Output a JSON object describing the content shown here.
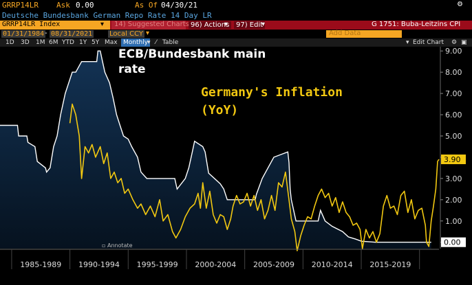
{
  "header": {
    "ticker": "GRRP14LR",
    "ask_label": "Ask",
    "ask_value": "0.00",
    "as_of_label": "As Of",
    "as_of_value": "04/30/21",
    "description": "Deutsche Bundesbank German Repo Rate 14 Day LR"
  },
  "command_bar": {
    "security": "GRRP14LR Index",
    "suggested": "14) Suggested Charts",
    "actions": "96) Actions",
    "edit": "97) Edit",
    "right_title": "G 1751: Buba-Leitzins CPI"
  },
  "range_bar": {
    "start_date": "01/31/1984",
    "end_date": "08/31/2021",
    "currency": "Local CCY",
    "add_data": "Add Data",
    "edit_chart": "Edit Chart"
  },
  "toolbar": {
    "periods": [
      "1D",
      "3D",
      "1M",
      "6M",
      "YTD",
      "1Y",
      "5Y",
      "Max"
    ],
    "frequency": "Monthly",
    "table": "Table"
  },
  "annotate": "Annotate",
  "colors": {
    "background": "#000000",
    "area_fill": "#0d2440",
    "area_line": "#ffffff",
    "cpi_line": "#f2c811",
    "header_bar": "#9b0b1a",
    "amber": "#f5a623"
  },
  "chart_data": {
    "type": "line",
    "xlabel": "",
    "ylabel": "",
    "x_range": [
      1984.0,
      2021.67
    ],
    "ylim": [
      -0.3,
      9.2
    ],
    "y_ticks": [
      "0.00",
      "1.00",
      "2.00",
      "3.00",
      "4.00",
      "5.00",
      "6.00",
      "7.00",
      "8.00",
      "9.00"
    ],
    "x_categories": [
      "1985-1989",
      "1990-1994",
      "1995-1999",
      "2000-2004",
      "2005-2009",
      "2010-2014",
      "2015-2019"
    ],
    "legend": "none",
    "grid": "off",
    "annotations": [
      {
        "text": "ECB/Bundesbank main rate",
        "color": "#ffffff"
      },
      {
        "text": "Germany's Inflation (YoY)",
        "color": "#f2c811"
      }
    ],
    "last_values": [
      {
        "series": "CPI",
        "value": "3.90"
      },
      {
        "series": "Repo",
        "value": "0.00"
      }
    ],
    "series": [
      {
        "style": "area",
        "color": "#ffffff",
        "points": [
          [
            1984.0,
            5.5
          ],
          [
            1985.5,
            5.5
          ],
          [
            1985.6,
            5.0
          ],
          [
            1986.3,
            5.0
          ],
          [
            1986.4,
            4.7
          ],
          [
            1987.0,
            4.5
          ],
          [
            1987.2,
            3.8
          ],
          [
            1987.9,
            3.5
          ],
          [
            1988.0,
            3.3
          ],
          [
            1988.3,
            3.5
          ],
          [
            1988.6,
            4.5
          ],
          [
            1988.9,
            5.0
          ],
          [
            1989.2,
            6.0
          ],
          [
            1989.6,
            7.0
          ],
          [
            1990.2,
            8.0
          ],
          [
            1990.5,
            8.0
          ],
          [
            1991.0,
            8.5
          ],
          [
            1992.3,
            8.5
          ],
          [
            1992.4,
            9.0
          ],
          [
            1992.6,
            9.0
          ],
          [
            1992.8,
            8.5
          ],
          [
            1993.0,
            8.0
          ],
          [
            1993.4,
            7.5
          ],
          [
            1993.7,
            6.8
          ],
          [
            1994.0,
            6.0
          ],
          [
            1994.3,
            5.5
          ],
          [
            1994.6,
            5.0
          ],
          [
            1995.0,
            4.85
          ],
          [
            1995.3,
            4.5
          ],
          [
            1995.8,
            4.0
          ],
          [
            1996.1,
            3.3
          ],
          [
            1996.6,
            3.0
          ],
          [
            1999.0,
            3.0
          ],
          [
            1999.2,
            2.5
          ],
          [
            1999.9,
            3.0
          ],
          [
            2000.2,
            3.5
          ],
          [
            2000.5,
            4.25
          ],
          [
            2000.7,
            4.75
          ],
          [
            2001.4,
            4.5
          ],
          [
            2001.6,
            4.25
          ],
          [
            2001.9,
            3.25
          ],
          [
            2002.9,
            2.75
          ],
          [
            2003.2,
            2.5
          ],
          [
            2003.5,
            2.0
          ],
          [
            2005.9,
            2.0
          ],
          [
            2006.0,
            2.25
          ],
          [
            2006.5,
            3.0
          ],
          [
            2007.0,
            3.5
          ],
          [
            2007.5,
            4.0
          ],
          [
            2008.7,
            4.25
          ],
          [
            2008.8,
            3.75
          ],
          [
            2008.9,
            2.5
          ],
          [
            2009.0,
            2.0
          ],
          [
            2009.2,
            1.5
          ],
          [
            2009.4,
            1.0
          ],
          [
            2011.3,
            1.0
          ],
          [
            2011.4,
            1.25
          ],
          [
            2011.5,
            1.5
          ],
          [
            2011.9,
            1.0
          ],
          [
            2012.5,
            0.75
          ],
          [
            2013.4,
            0.5
          ],
          [
            2013.9,
            0.25
          ],
          [
            2014.5,
            0.15
          ],
          [
            2015.0,
            0.05
          ],
          [
            2016.2,
            0.0
          ],
          [
            2021.0,
            0.0
          ]
        ]
      },
      {
        "style": "line",
        "color": "#f2c811",
        "points": [
          [
            1990.0,
            5.6
          ],
          [
            1990.2,
            6.5
          ],
          [
            1990.5,
            6.0
          ],
          [
            1990.8,
            5.0
          ],
          [
            1991.0,
            3.0
          ],
          [
            1991.3,
            4.5
          ],
          [
            1991.6,
            4.2
          ],
          [
            1991.9,
            4.6
          ],
          [
            1992.2,
            4.0
          ],
          [
            1992.6,
            4.5
          ],
          [
            1992.9,
            3.7
          ],
          [
            1993.2,
            4.2
          ],
          [
            1993.5,
            3.0
          ],
          [
            1993.8,
            3.3
          ],
          [
            1994.1,
            2.8
          ],
          [
            1994.4,
            3.0
          ],
          [
            1994.7,
            2.3
          ],
          [
            1995.0,
            2.5
          ],
          [
            1995.4,
            2.0
          ],
          [
            1995.8,
            1.6
          ],
          [
            1996.1,
            1.8
          ],
          [
            1996.5,
            1.3
          ],
          [
            1996.9,
            1.7
          ],
          [
            1997.3,
            1.2
          ],
          [
            1997.7,
            2.0
          ],
          [
            1998.0,
            1.0
          ],
          [
            1998.4,
            1.3
          ],
          [
            1998.8,
            0.5
          ],
          [
            1999.1,
            0.2
          ],
          [
            1999.5,
            0.6
          ],
          [
            1999.9,
            1.2
          ],
          [
            2000.3,
            1.6
          ],
          [
            2000.7,
            1.8
          ],
          [
            2001.0,
            2.3
          ],
          [
            2001.2,
            1.6
          ],
          [
            2001.4,
            2.8
          ],
          [
            2001.7,
            1.6
          ],
          [
            2002.0,
            2.4
          ],
          [
            2002.3,
            1.3
          ],
          [
            2002.6,
            0.9
          ],
          [
            2002.9,
            1.3
          ],
          [
            2003.2,
            1.2
          ],
          [
            2003.5,
            0.6
          ],
          [
            2003.8,
            1.1
          ],
          [
            2004.0,
            1.7
          ],
          [
            2004.3,
            2.2
          ],
          [
            2004.6,
            1.8
          ],
          [
            2004.9,
            1.9
          ],
          [
            2005.2,
            2.3
          ],
          [
            2005.5,
            1.7
          ],
          [
            2005.8,
            2.2
          ],
          [
            2006.1,
            1.5
          ],
          [
            2006.4,
            2.0
          ],
          [
            2006.7,
            1.1
          ],
          [
            2007.0,
            1.5
          ],
          [
            2007.3,
            2.2
          ],
          [
            2007.6,
            1.5
          ],
          [
            2007.9,
            2.8
          ],
          [
            2008.2,
            2.6
          ],
          [
            2008.5,
            3.3
          ],
          [
            2008.8,
            2.0
          ],
          [
            2009.0,
            1.1
          ],
          [
            2009.3,
            0.5
          ],
          [
            2009.5,
            -0.4
          ],
          [
            2009.8,
            0.3
          ],
          [
            2010.1,
            0.8
          ],
          [
            2010.4,
            1.2
          ],
          [
            2010.7,
            1.1
          ],
          [
            2011.0,
            1.7
          ],
          [
            2011.3,
            2.2
          ],
          [
            2011.6,
            2.5
          ],
          [
            2011.9,
            2.1
          ],
          [
            2012.2,
            2.3
          ],
          [
            2012.5,
            1.7
          ],
          [
            2012.8,
            2.1
          ],
          [
            2013.1,
            1.4
          ],
          [
            2013.4,
            1.9
          ],
          [
            2013.7,
            1.4
          ],
          [
            2014.0,
            1.2
          ],
          [
            2014.3,
            0.8
          ],
          [
            2014.6,
            0.9
          ],
          [
            2014.9,
            0.6
          ],
          [
            2015.1,
            -0.3
          ],
          [
            2015.4,
            0.6
          ],
          [
            2015.7,
            0.2
          ],
          [
            2016.0,
            0.5
          ],
          [
            2016.3,
            0.0
          ],
          [
            2016.6,
            0.4
          ],
          [
            2016.9,
            1.7
          ],
          [
            2017.2,
            2.2
          ],
          [
            2017.5,
            1.6
          ],
          [
            2017.8,
            1.7
          ],
          [
            2018.1,
            1.3
          ],
          [
            2018.4,
            2.2
          ],
          [
            2018.7,
            2.4
          ],
          [
            2019.0,
            1.4
          ],
          [
            2019.3,
            2.0
          ],
          [
            2019.6,
            1.1
          ],
          [
            2019.9,
            1.5
          ],
          [
            2020.2,
            1.6
          ],
          [
            2020.5,
            0.8
          ],
          [
            2020.6,
            0.0
          ],
          [
            2020.8,
            -0.2
          ],
          [
            2021.0,
            1.0
          ],
          [
            2021.2,
            1.7
          ],
          [
            2021.4,
            2.5
          ],
          [
            2021.55,
            3.8
          ],
          [
            2021.67,
            3.9
          ]
        ]
      }
    ]
  }
}
